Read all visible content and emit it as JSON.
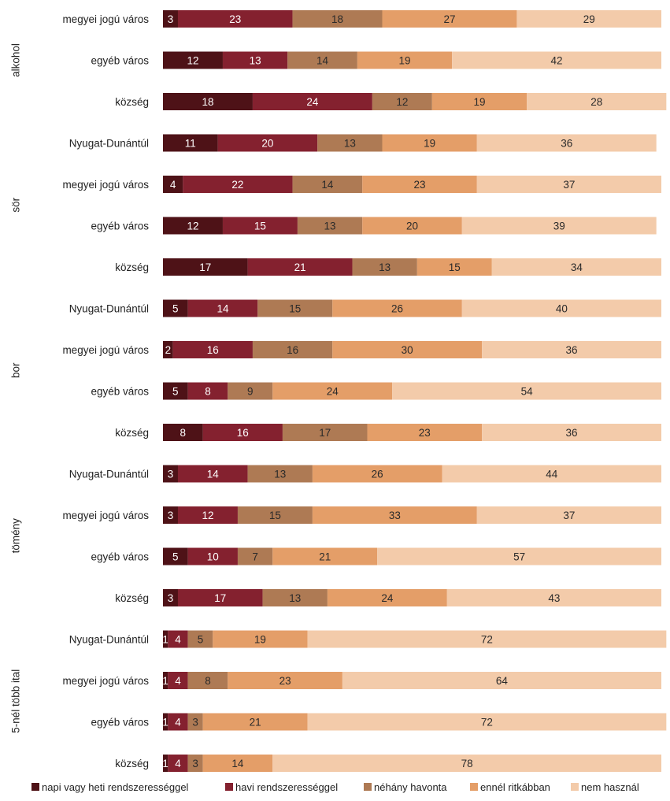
{
  "chart_data": {
    "type": "bar",
    "orientation": "horizontal",
    "stacked": true,
    "scale_max": 100,
    "title": "",
    "xlabel": "",
    "ylabel": "",
    "grid": false,
    "legend_position": "bottom",
    "groups": [
      {
        "name": "alkohol",
        "rows": [
          {
            "label": "megyei jogú város",
            "values": [
              3,
              23,
              18,
              27,
              29
            ]
          },
          {
            "label": "egyéb város",
            "values": [
              12,
              13,
              14,
              19,
              42
            ]
          },
          {
            "label": "község",
            "values": [
              18,
              24,
              12,
              19,
              28
            ]
          }
        ]
      },
      {
        "name": "sör",
        "rows": [
          {
            "label": "Nyugat-Dunántúl",
            "values": [
              11,
              20,
              13,
              19,
              36
            ]
          },
          {
            "label": "megyei jogú város",
            "values": [
              4,
              22,
              14,
              23,
              37
            ]
          },
          {
            "label": "egyéb város",
            "values": [
              12,
              15,
              13,
              20,
              39
            ]
          },
          {
            "label": "község",
            "values": [
              17,
              21,
              13,
              15,
              34
            ]
          }
        ]
      },
      {
        "name": "bor",
        "rows": [
          {
            "label": "Nyugat-Dunántúl",
            "values": [
              5,
              14,
              15,
              26,
              40
            ]
          },
          {
            "label": "megyei jogú város",
            "values": [
              2,
              16,
              16,
              30,
              36
            ]
          },
          {
            "label": "egyéb város",
            "values": [
              5,
              8,
              9,
              24,
              54
            ]
          },
          {
            "label": "község",
            "values": [
              8,
              16,
              17,
              23,
              36
            ]
          }
        ]
      },
      {
        "name": "tömény",
        "rows": [
          {
            "label": "Nyugat-Dunántúl",
            "values": [
              3,
              14,
              13,
              26,
              44
            ]
          },
          {
            "label": "megyei jogú város",
            "values": [
              3,
              12,
              15,
              33,
              37
            ]
          },
          {
            "label": "egyéb város",
            "values": [
              5,
              10,
              7,
              21,
              57
            ]
          },
          {
            "label": "község",
            "values": [
              3,
              17,
              13,
              24,
              43
            ]
          }
        ]
      },
      {
        "name": "5-nél több ital",
        "rows": [
          {
            "label": "Nyugat-Dunántúl",
            "values": [
              1,
              4,
              5,
              19,
              72
            ]
          },
          {
            "label": "megyei jogú város",
            "values": [
              1,
              4,
              8,
              23,
              64
            ]
          },
          {
            "label": "egyéb város",
            "values": [
              1,
              4,
              3,
              21,
              72
            ]
          },
          {
            "label": "község",
            "values": [
              1,
              4,
              3,
              14,
              78
            ]
          }
        ]
      }
    ],
    "series": [
      {
        "name": "napi vagy heti rendszerességgel",
        "color": "#4e1217",
        "label_color": "#ffffff"
      },
      {
        "name": "havi rendszerességgel",
        "color": "#84212f",
        "label_color": "#ffffff"
      },
      {
        "name": "néhány havonta",
        "color": "#ae7a54",
        "label_color": "#2a2a2a"
      },
      {
        "name": "ennél ritkábban",
        "color": "#e49e68",
        "label_color": "#2a2a2a"
      },
      {
        "name": "nem használ",
        "color": "#f3cbaa",
        "label_color": "#2a2a2a"
      }
    ]
  }
}
